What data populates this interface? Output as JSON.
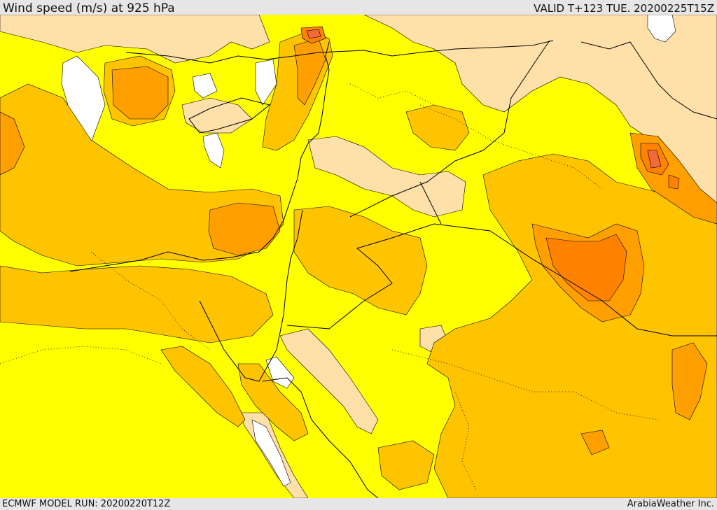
{
  "header": {
    "title": "Wind speed (m/s) at 925 hPa",
    "valid": "VALID T+123 TUE. 20200225T15Z"
  },
  "footer": {
    "model_run": "ECMWF MODEL RUN: 20200220T12Z",
    "credit": "ArabiaWeather Inc."
  },
  "palette": {
    "calm": "#ffffff",
    "light": "#ffe0a8",
    "moderate": "#ffff00",
    "fresh": "#ffc400",
    "strong": "#ffa000",
    "gale": "#ff8200",
    "severe": "#f06a3a",
    "border": "#000000"
  }
}
